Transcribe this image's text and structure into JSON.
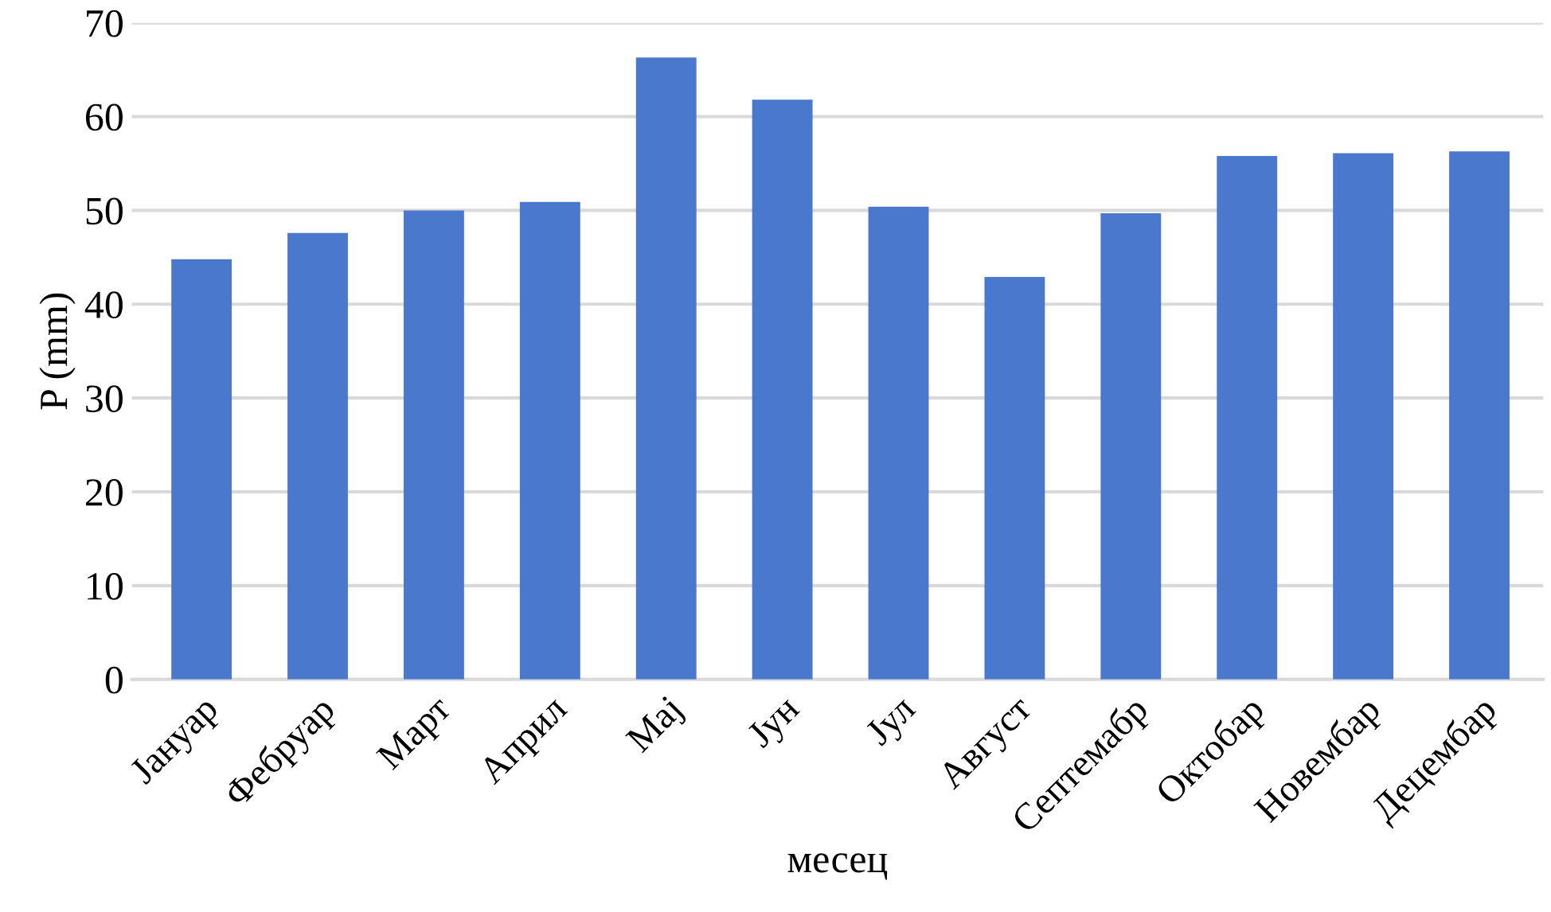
{
  "chart_data": {
    "type": "bar",
    "xlabel": "месец",
    "ylabel": "P (mm)",
    "categories": [
      "Јануар",
      "Фебруар",
      "Март",
      "Април",
      "Мај",
      "Јун",
      "Јул",
      "Август",
      "Септемабр",
      "Октобар",
      "Новембар",
      "Децембар"
    ],
    "values": [
      44.8,
      47.6,
      50.0,
      50.9,
      66.3,
      61.8,
      50.4,
      42.9,
      49.7,
      55.8,
      56.1,
      56.3
    ],
    "color": "#4a78cc",
    "ylim": [
      0,
      70
    ],
    "yticks": [
      0,
      10,
      20,
      30,
      40,
      50,
      60,
      70
    ],
    "grid": "y",
    "legend": false
  }
}
